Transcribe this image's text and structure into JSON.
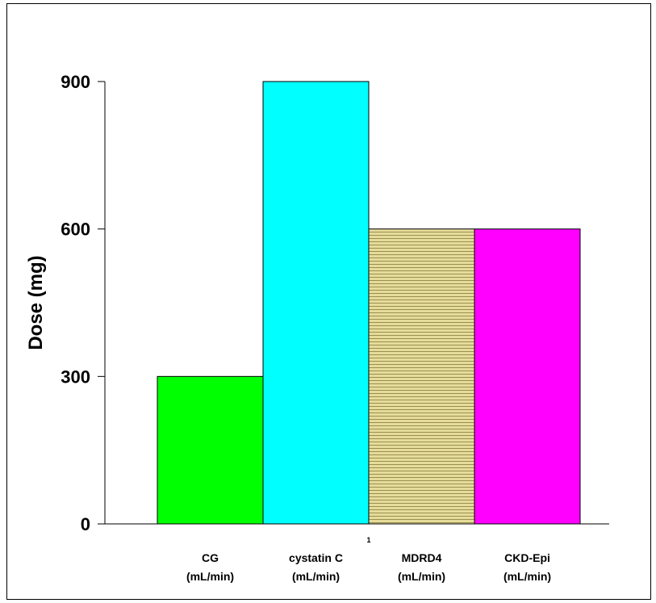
{
  "chart_data": {
    "type": "bar",
    "title": "",
    "xlabel": "",
    "ylabel": "Dose (mg)",
    "ylim": [
      0,
      900
    ],
    "yticks": [
      "0",
      "300",
      "600",
      "900"
    ],
    "grid": false,
    "legend": "none",
    "categories": [
      {
        "line1": "CG",
        "line2": "(mL/min)"
      },
      {
        "line1": "cystatin C",
        "line2": "(mL/min)"
      },
      {
        "line1": "MDRD4",
        "line2": "(mL/min)"
      },
      {
        "line1": "CKD-Epi",
        "line2": "(mL/min)"
      }
    ],
    "values": [
      300,
      900,
      600,
      600
    ],
    "colors": [
      "#00ff00",
      "#00ffff",
      "#e6dc9a",
      "#ff00ff"
    ],
    "patterns": [
      "solid",
      "solid",
      "horizontal-lines",
      "solid"
    ],
    "x_note": "1"
  }
}
